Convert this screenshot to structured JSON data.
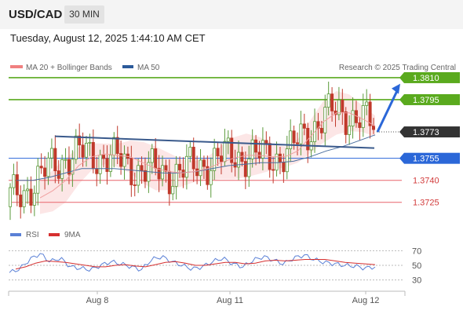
{
  "header": {
    "symbol": "USD/CAD",
    "interval": "30 MIN",
    "datetime": "Tuesday, August 12, 2025 1:44:10 AM CET"
  },
  "legend": {
    "ma20": "MA 20 + Bollinger Bands",
    "ma50": "MA 50",
    "credit": "Research © 2025 Trading Central",
    "rsi": "RSI",
    "rsi_ma": "9MA"
  },
  "colors": {
    "resistance": "#5aaa1e",
    "support": "#e8646c",
    "pivot": "#2b67d8",
    "trendline": "#3a5a8c",
    "last": "#333333",
    "bull": "#5a9a3a",
    "bear": "#c0392b",
    "band_fill": "#fbdcdc",
    "ma20": "#f0a0a0",
    "ma50": "#4a6fa0",
    "rsi_line": "#5a80d6",
    "rsi_ma_line": "#d63030"
  },
  "chart_data": [
    {
      "type": "candlestick",
      "title": "USD/CAD",
      "ylim": [
        1.3712,
        1.3818
      ],
      "x_ticks": [
        "Aug 8",
        "Aug 11",
        "Aug 12"
      ],
      "levels": [
        {
          "name": "resistance",
          "value": 1.381,
          "label": "1.3810"
        },
        {
          "name": "resistance",
          "value": 1.3795,
          "label": "1.3795"
        },
        {
          "name": "last",
          "value": 1.3773,
          "label": "1.3773"
        },
        {
          "name": "pivot",
          "value": 1.3755,
          "label": "1.3755"
        },
        {
          "name": "support",
          "value": 1.374,
          "label": "1.3740"
        },
        {
          "name": "support",
          "value": 1.3725,
          "label": "1.3725"
        }
      ],
      "trendline": {
        "start": 1.377,
        "end": 1.3762
      },
      "forecast_arrow": {
        "from": 1.3773,
        "to": 1.3808
      },
      "series": [
        {
          "name": "MA 20 + Bollinger Bands",
          "values": [
            1.3728,
            1.3733,
            1.374,
            1.375,
            1.3756,
            1.3758,
            1.3757,
            1.3756,
            1.3752,
            1.3748,
            1.3746,
            1.3745,
            1.3746,
            1.3748,
            1.3752,
            1.3755,
            1.3757,
            1.3757,
            1.3756,
            1.3756,
            1.376,
            1.377,
            1.378,
            1.3786,
            1.3786,
            1.3782,
            1.3777
          ]
        },
        {
          "name": "MA 50",
          "values": [
            1.374,
            1.374,
            1.3742,
            1.3745,
            1.3748,
            1.3748,
            1.3748,
            1.3747,
            1.3746,
            1.3745,
            1.3745,
            1.3746,
            1.3748,
            1.375,
            1.3751,
            1.3752,
            1.3752,
            1.3753,
            1.3756,
            1.376,
            1.3763,
            1.3767,
            1.3771
          ]
        }
      ]
    },
    {
      "type": "line",
      "title": "RSI",
      "ylim": [
        20,
        80
      ],
      "y_ticks": [
        70,
        50,
        30
      ],
      "series": [
        {
          "name": "RSI",
          "values": [
            40,
            45,
            58,
            66,
            55,
            60,
            48,
            46,
            44,
            50,
            55,
            52,
            48,
            44,
            58,
            62,
            55,
            50,
            45,
            48,
            55,
            60,
            52,
            48,
            57,
            62,
            57,
            52,
            60,
            64,
            58,
            54,
            52,
            50,
            49,
            46,
            48
          ]
        },
        {
          "name": "9MA",
          "values": [
            45,
            48,
            53,
            56,
            55,
            54,
            52,
            50,
            48,
            48,
            50,
            51,
            49,
            48,
            51,
            54,
            55,
            53,
            50,
            50,
            52,
            54,
            54,
            52,
            53,
            56,
            57,
            56,
            57,
            58,
            58,
            58,
            56,
            54,
            53,
            52,
            51
          ]
        }
      ]
    }
  ]
}
